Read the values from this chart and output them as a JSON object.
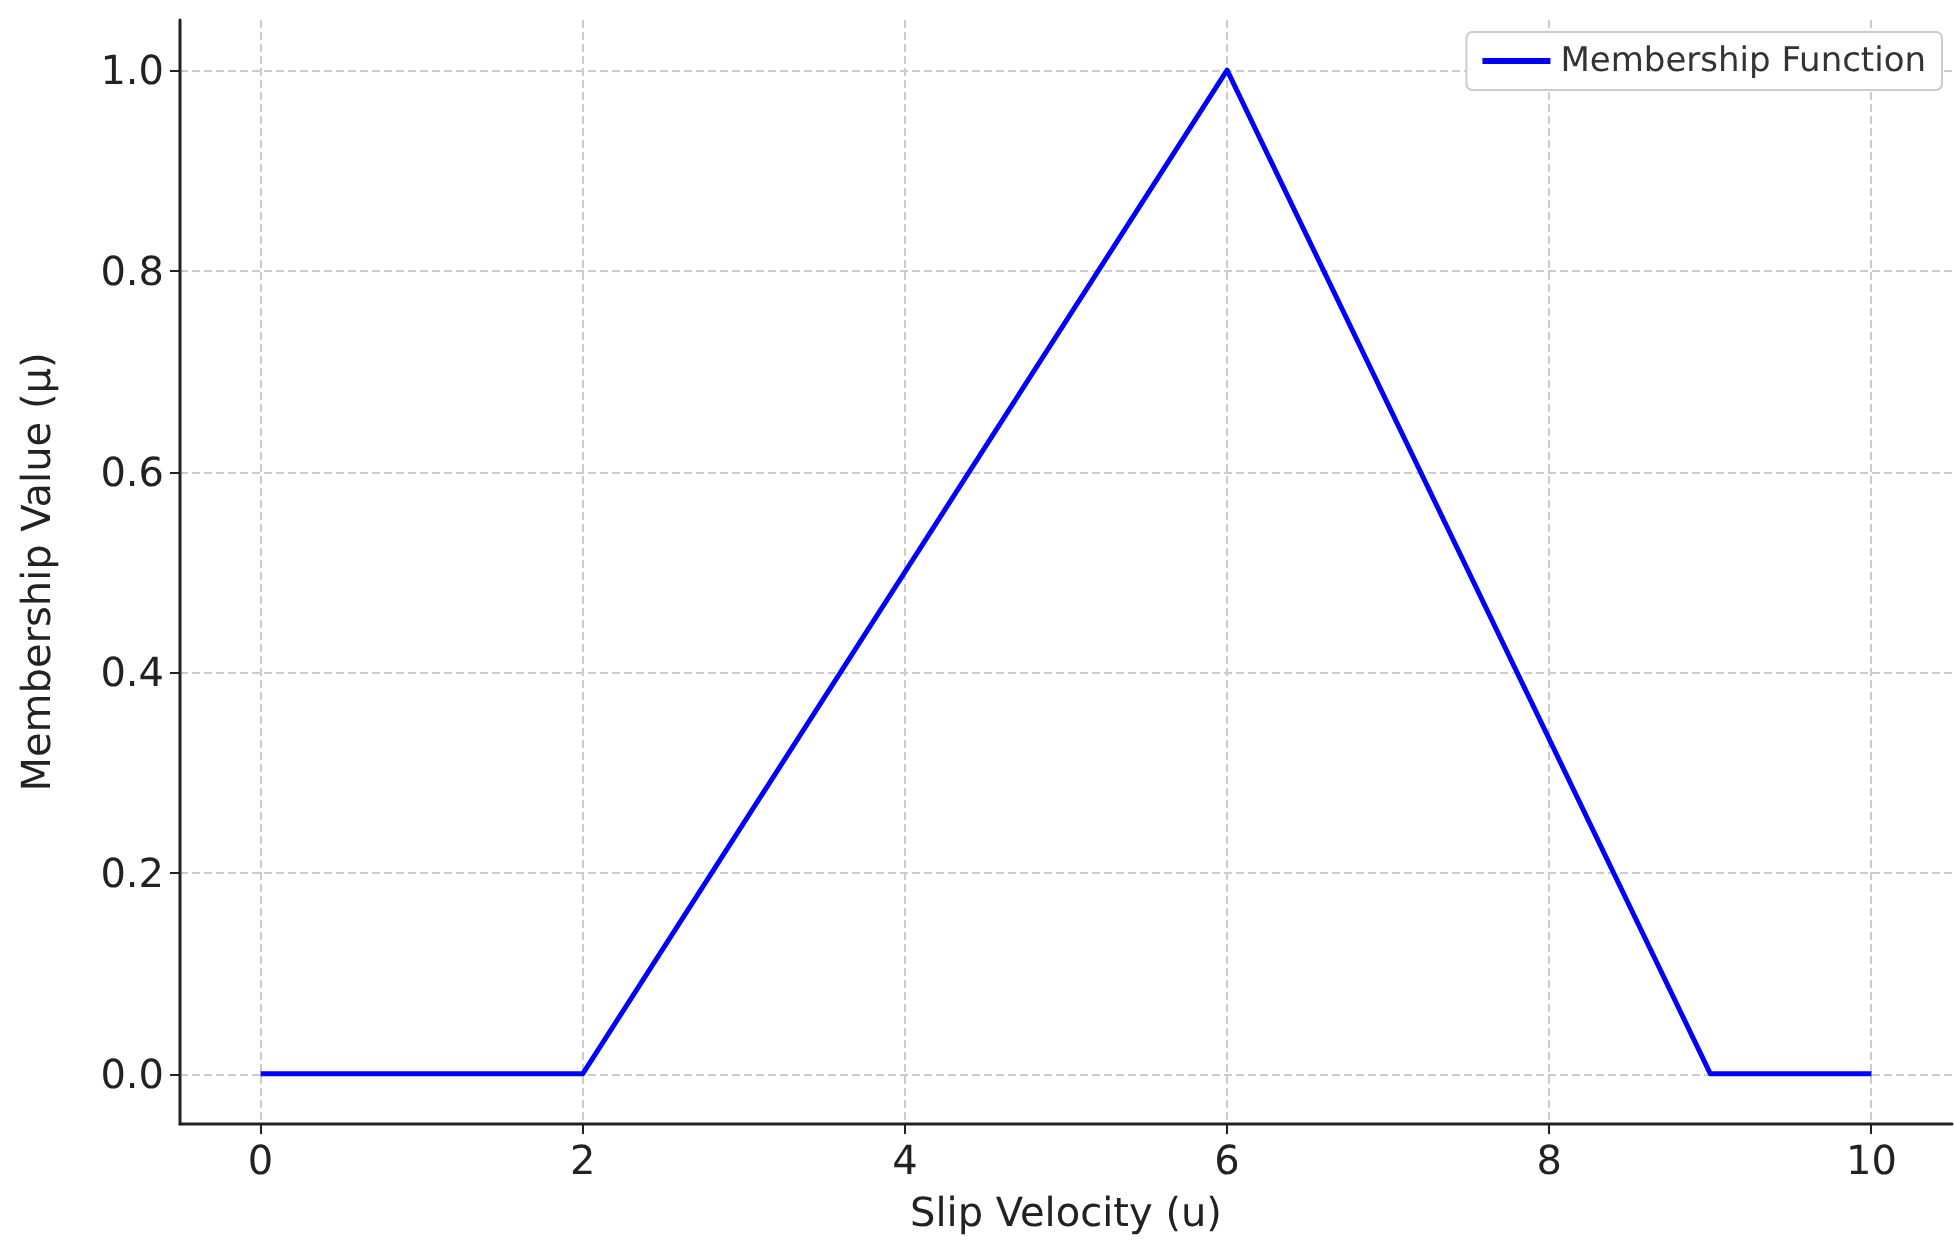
{
  "chart_data": {
    "type": "line",
    "xlabel": "Slip Velocity (u)",
    "ylabel": "Membership Value (μ)",
    "x": [
      0,
      2,
      6,
      9,
      10
    ],
    "series": [
      {
        "name": "Membership Function",
        "color": "#0000ff",
        "values": [
          0,
          0,
          1,
          0,
          0
        ]
      }
    ],
    "xlim": [
      -0.5,
      10.5
    ],
    "xticks": [
      0,
      2,
      4,
      6,
      8,
      10
    ],
    "ylim": [
      -0.05,
      1.05
    ],
    "yticks": [
      {
        "value": 0,
        "label": "0.0"
      },
      {
        "value": 0.2,
        "label": "0.2"
      },
      {
        "value": 0.4,
        "label": "0.4"
      },
      {
        "value": 0.6,
        "label": "0.6"
      },
      {
        "value": 0.8,
        "label": "0.8"
      },
      {
        "value": 1,
        "label": "1.0"
      }
    ],
    "grid": true,
    "legend": "top right",
    "marker": "none",
    "line_style": "solid"
  }
}
